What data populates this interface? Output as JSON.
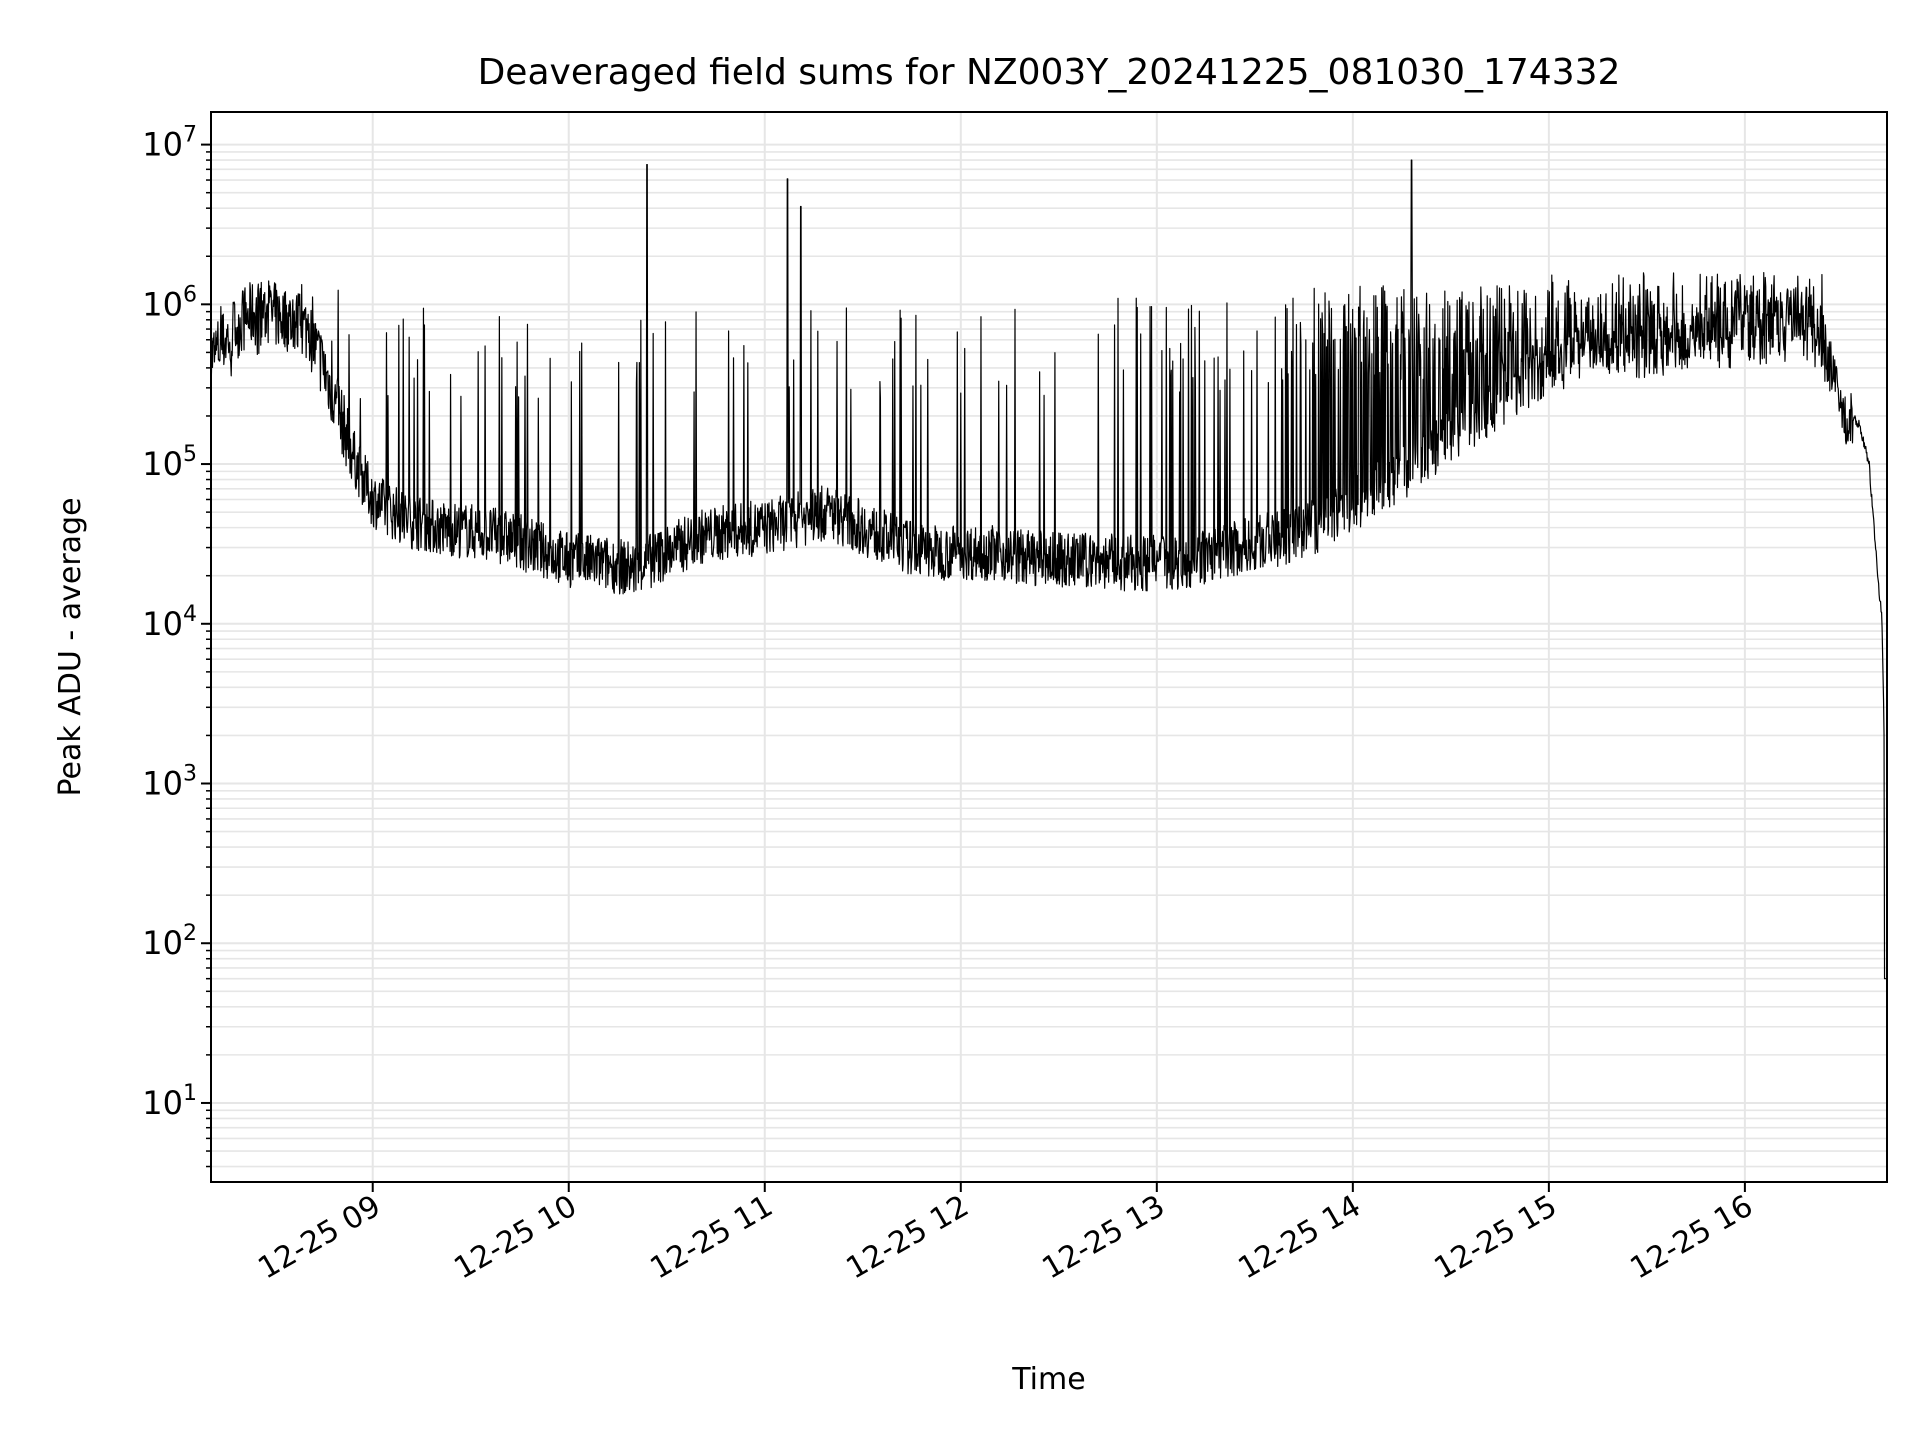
{
  "chart_data": {
    "type": "line",
    "title": "Deaveraged field sums for NZ003Y_20241225_081030_174332",
    "xlabel": "Time",
    "ylabel": "Peak ADU - average",
    "yscale": "log",
    "ylim": [
      3.2,
      16000000
    ],
    "xlim": [
      "12-25 08:10:30",
      "12-25 16:43:30"
    ],
    "x_ticks": [
      "12-25 09",
      "12-25 10",
      "12-25 11",
      "12-25 12",
      "12-25 13",
      "12-25 14",
      "12-25 15",
      "12-25 16"
    ],
    "y_ticks": [
      {
        "base": "10",
        "exp": "1",
        "value": 10
      },
      {
        "base": "10",
        "exp": "2",
        "value": 100
      },
      {
        "base": "10",
        "exp": "3",
        "value": 1000
      },
      {
        "base": "10",
        "exp": "4",
        "value": 10000
      },
      {
        "base": "10",
        "exp": "5",
        "value": 100000
      },
      {
        "base": "10",
        "exp": "6",
        "value": 1000000
      },
      {
        "base": "10",
        "exp": "7",
        "value": 10000000
      }
    ],
    "grid": true,
    "line_color": "#000000",
    "grid_color": "#e6e6e6",
    "series": [
      {
        "x": [
          "12-25 08:10",
          "12-25 08:15",
          "12-25 08:20",
          "12-25 08:25",
          "12-25 08:30",
          "12-25 08:35",
          "12-25 08:40",
          "12-25 08:45",
          "12-25 08:50",
          "12-25 08:55",
          "12-25 09:00",
          "12-25 09:10",
          "12-25 09:20",
          "12-25 09:30",
          "12-25 09:40",
          "12-25 09:50",
          "12-25 10:00",
          "12-25 10:10",
          "12-25 10:20",
          "12-25 10:30",
          "12-25 10:40",
          "12-25 10:50",
          "12-25 11:00",
          "12-25 11:10",
          "12-25 11:20",
          "12-25 11:30",
          "12-25 11:40",
          "12-25 11:50",
          "12-25 12:00",
          "12-25 12:10",
          "12-25 12:20",
          "12-25 12:30",
          "12-25 12:40",
          "12-25 12:50",
          "12-25 13:00",
          "12-25 13:10",
          "12-25 13:20",
          "12-25 13:30",
          "12-25 13:40",
          "12-25 13:50",
          "12-25 14:00",
          "12-25 14:10",
          "12-25 14:20",
          "12-25 14:30",
          "12-25 14:40",
          "12-25 14:50",
          "12-25 15:00",
          "12-25 15:10",
          "12-25 15:20",
          "12-25 15:30",
          "12-25 15:40",
          "12-25 15:50",
          "12-25 16:00",
          "12-25 16:10",
          "12-25 16:20",
          "12-25 16:25",
          "12-25 16:30",
          "12-25 16:35",
          "12-25 16:38",
          "12-25 16:40",
          "12-25 16:42",
          "12-25 16:43"
        ],
        "y": [
          450000,
          600000,
          800000,
          900000,
          850000,
          800000,
          700000,
          400000,
          200000,
          100000,
          60000,
          45000,
          40000,
          38000,
          35000,
          30000,
          25000,
          24000,
          22000,
          28000,
          35000,
          38000,
          40000,
          45000,
          50000,
          40000,
          32000,
          28000,
          28000,
          28000,
          26000,
          25000,
          25000,
          24000,
          24000,
          25000,
          28000,
          32000,
          35000,
          42000,
          55000,
          75000,
          100000,
          150000,
          200000,
          300000,
          400000,
          500000,
          550000,
          500000,
          550000,
          700000,
          750000,
          800000,
          1000000,
          500000,
          200000,
          180000,
          100000,
          30000,
          10000,
          700
        ]
      }
    ],
    "annotations": [
      {
        "type": "spike",
        "x": "12-25 10:24",
        "y": 7500000
      },
      {
        "type": "spike",
        "x": "12-25 11:07",
        "y": 6100000
      },
      {
        "type": "spike",
        "x": "12-25 11:11",
        "y": 4100000
      },
      {
        "type": "spike",
        "x": "12-25 14:18",
        "y": 8000000
      },
      {
        "type": "min-dip",
        "x": "12-25 16:43",
        "y": 60
      }
    ]
  }
}
